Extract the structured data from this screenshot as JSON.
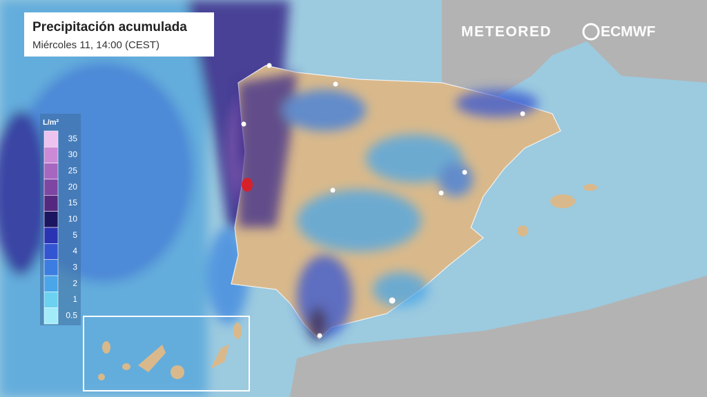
{
  "header": {
    "title": "Precipitación acumulada",
    "subtitle": "Miércoles 11, 14:00 (CEST)"
  },
  "brands": [
    "METEORED",
    "ECMWF"
  ],
  "legend": {
    "unit": "L/m²",
    "items": [
      {
        "value": 35,
        "color": "#ecc2ee"
      },
      {
        "value": 30,
        "color": "#cc8ad6"
      },
      {
        "value": 25,
        "color": "#a766bf"
      },
      {
        "value": 20,
        "color": "#7e46a2"
      },
      {
        "value": 15,
        "color": "#55277e"
      },
      {
        "value": 10,
        "color": "#1c1660"
      },
      {
        "value": 5,
        "color": "#2a33b2"
      },
      {
        "value": 4,
        "color": "#3455d2"
      },
      {
        "value": 3,
        "color": "#3b7de0"
      },
      {
        "value": 2,
        "color": "#4aa6e8"
      },
      {
        "value": 1,
        "color": "#6bd2f0"
      },
      {
        "value": 0.5,
        "color": "#a2ecfa"
      }
    ]
  }
}
